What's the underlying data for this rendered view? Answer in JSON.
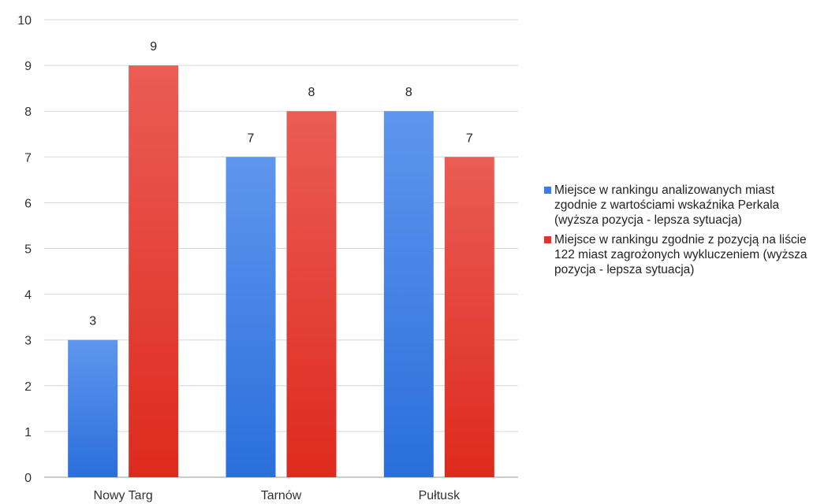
{
  "chart_data": {
    "type": "bar",
    "title": "",
    "xlabel": "",
    "ylabel": "",
    "categories": [
      "Nowy Targ",
      "Tarnów",
      "Pułtusk"
    ],
    "ylim": [
      0,
      10
    ],
    "yticks": [
      0,
      1,
      2,
      3,
      4,
      5,
      6,
      7,
      8,
      9,
      10
    ],
    "grid": true,
    "legend_position": "right",
    "series": [
      {
        "name": "Miejsce w rankingu analizowanych miast zgodnie z wartościami wskaźnika  Perkala (wyższa pozycja - lepsza sytuacja)",
        "values": [
          3,
          7,
          8
        ],
        "color": "#3b7de0"
      },
      {
        "name": "Miejsce w rankingu zgodnie z pozycją na liście 122 miast zagrożonych wykluczeniem (wyższa pozycja - lepsza sytuacja)",
        "values": [
          9,
          8,
          7
        ],
        "color": "#e0352b"
      }
    ]
  }
}
